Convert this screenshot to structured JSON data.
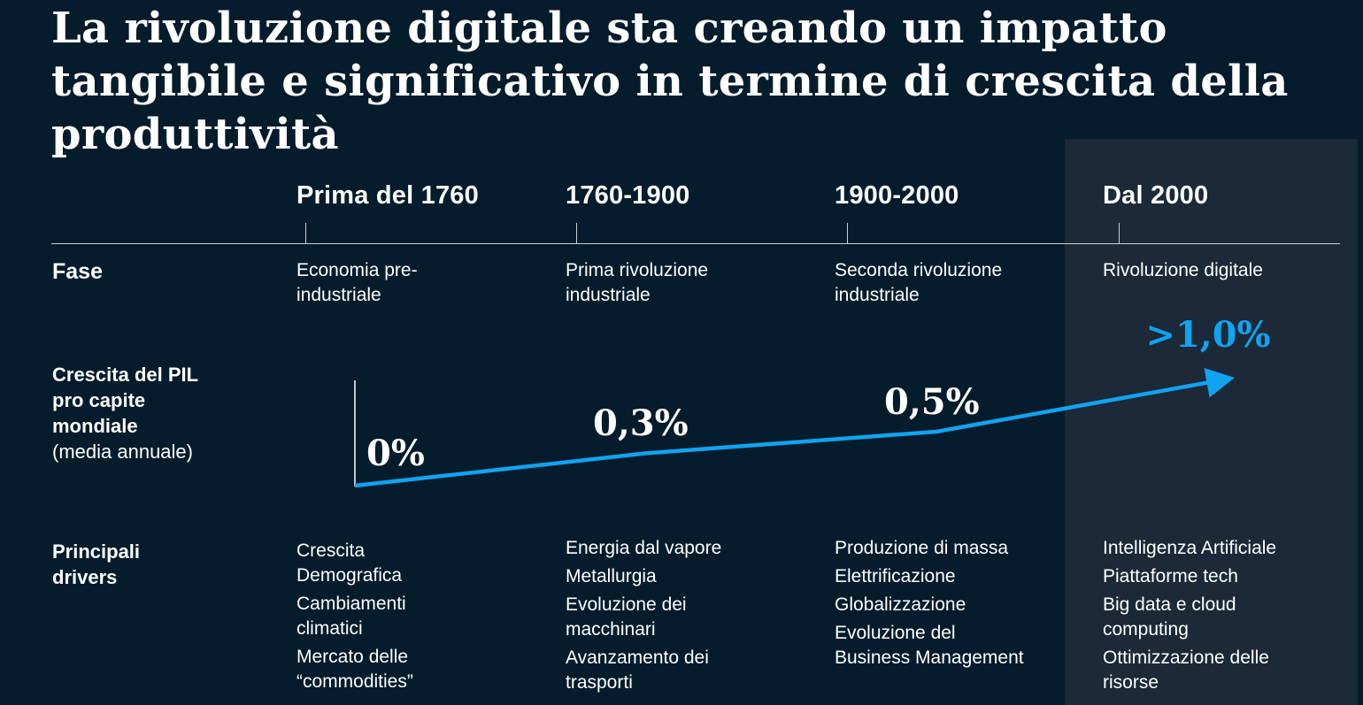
{
  "title": "La rivoluzione digitale sta creando un impatto tangibile e significativo in termine di crescita della produttività",
  "row_labels": {
    "fase": "Fase",
    "gdp_line1": "Crescita del PIL",
    "gdp_line2": "pro capite",
    "gdp_line3": "mondiale",
    "gdp_note": "(media annuale)",
    "drivers_line1": "Principali",
    "drivers_line2": "drivers"
  },
  "periods": [
    {
      "name": "Prima del 1760",
      "phase": "Economia pre-industriale",
      "growth_label": "0%",
      "drivers": [
        "Crescita Demografica",
        "Cambiamenti climatici",
        "Mercato delle “commodities”"
      ]
    },
    {
      "name": "1760-1900",
      "phase": "Prima rivoluzione industriale",
      "growth_label": "0,3%",
      "drivers": [
        "Energia dal vapore",
        "Metallurgia",
        "Evoluzione dei macchinari",
        "Avanzamento dei trasporti"
      ]
    },
    {
      "name": "1900-2000",
      "phase": "Seconda rivoluzione industriale",
      "growth_label": "0,5%",
      "drivers": [
        "Produzione di massa",
        "Elettrificazione",
        "Globalizzazione",
        "Evoluzione del Business Management"
      ]
    },
    {
      "name": "Dal 2000",
      "phase": "Rivoluzione digitale",
      "growth_label": ">1,0%",
      "drivers": [
        "Intelligenza Artificiale",
        "Piattaforme tech",
        "Big data e cloud computing",
        "Ottimizzazione delle risorse"
      ]
    }
  ],
  "chart_data": {
    "type": "line",
    "categories": [
      "Prima del 1760",
      "1760-1900",
      "1900-2000",
      "Dal 2000"
    ],
    "values": [
      0,
      0.3,
      0.5,
      1.0
    ],
    "data_labels": [
      "0%",
      "0,3%",
      "0,5%",
      ">1,0%"
    ],
    "ylabel": "Crescita del PIL pro capite mondiale (media annuale)",
    "line_color": "#11a3f0",
    "last_label_color": "#11a3f0",
    "grid": false,
    "arrow_at_end": true
  },
  "colors": {
    "background": "#051c2c",
    "highlight_panel": "#1b2938",
    "accent": "#11a3f0",
    "text": "#ffffff"
  }
}
